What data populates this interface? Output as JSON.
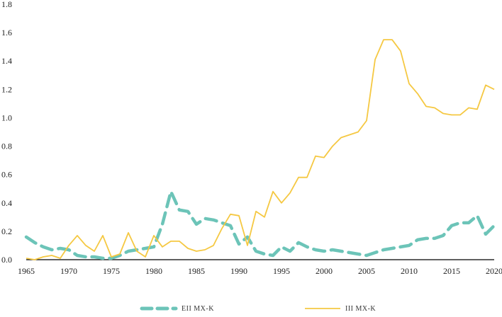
{
  "chart_data": {
    "type": "line",
    "x_ticks": [
      1965,
      1970,
      1975,
      1980,
      1985,
      1990,
      1995,
      2000,
      2005,
      2010,
      2015,
      2020
    ],
    "y_ticks": [
      "0.0",
      "0.2",
      "0.4",
      "0.6",
      "0.8",
      "1.0",
      "1.2",
      "1.4",
      "1.6",
      "1.8"
    ],
    "xlim": [
      1965,
      2020
    ],
    "ylim": [
      0,
      1.8
    ],
    "grid": false,
    "legend_position": "bottom",
    "series": [
      {
        "name": "EII MX-K",
        "color": "#6cc4b8",
        "style": "dashed",
        "x": [
          1965,
          1966,
          1967,
          1968,
          1969,
          1970,
          1971,
          1972,
          1973,
          1974,
          1975,
          1976,
          1977,
          1978,
          1979,
          1980,
          1981,
          1982,
          1983,
          1984,
          1985,
          1986,
          1987,
          1988,
          1989,
          1990,
          1991,
          1992,
          1993,
          1994,
          1995,
          1996,
          1997,
          1998,
          1999,
          2000,
          2001,
          2002,
          2003,
          2004,
          2005,
          2006,
          2007,
          2008,
          2009,
          2010,
          2011,
          2012,
          2013,
          2014,
          2015,
          2016,
          2017,
          2018,
          2019,
          2020
        ],
        "values": [
          0.16,
          0.12,
          0.09,
          0.07,
          0.08,
          0.07,
          0.03,
          0.02,
          0.02,
          0.01,
          0.01,
          0.03,
          0.06,
          0.07,
          0.08,
          0.09,
          0.25,
          0.48,
          0.35,
          0.34,
          0.25,
          0.29,
          0.28,
          0.26,
          0.24,
          0.11,
          0.16,
          0.06,
          0.04,
          0.03,
          0.09,
          0.06,
          0.12,
          0.09,
          0.07,
          0.06,
          0.07,
          0.06,
          0.05,
          0.04,
          0.03,
          0.05,
          0.07,
          0.08,
          0.09,
          0.1,
          0.14,
          0.15,
          0.15,
          0.17,
          0.24,
          0.26,
          0.26,
          0.31,
          0.18,
          0.24
        ]
      },
      {
        "name": "III MX-K",
        "color": "#f5c842",
        "style": "solid",
        "x": [
          1965,
          1966,
          1967,
          1968,
          1969,
          1970,
          1971,
          1972,
          1973,
          1974,
          1975,
          1976,
          1977,
          1978,
          1979,
          1980,
          1981,
          1982,
          1983,
          1984,
          1985,
          1986,
          1987,
          1988,
          1989,
          1990,
          1991,
          1992,
          1993,
          1994,
          1995,
          1996,
          1997,
          1998,
          1999,
          2000,
          2001,
          2002,
          2003,
          2004,
          2005,
          2006,
          2007,
          2008,
          2009,
          2010,
          2011,
          2012,
          2013,
          2014,
          2015,
          2016,
          2017,
          2018,
          2019,
          2020
        ],
        "values": [
          0.01,
          0.0,
          0.02,
          0.03,
          0.01,
          0.1,
          0.17,
          0.1,
          0.06,
          0.17,
          0.02,
          0.04,
          0.19,
          0.06,
          0.02,
          0.17,
          0.09,
          0.13,
          0.13,
          0.08,
          0.06,
          0.07,
          0.1,
          0.22,
          0.32,
          0.31,
          0.1,
          0.34,
          0.3,
          0.48,
          0.4,
          0.47,
          0.58,
          0.58,
          0.73,
          0.72,
          0.8,
          0.86,
          0.88,
          0.9,
          0.98,
          1.41,
          1.55,
          1.55,
          1.47,
          1.24,
          1.17,
          1.08,
          1.07,
          1.03,
          1.02,
          1.02,
          1.07,
          1.06,
          1.23,
          1.2
        ]
      }
    ]
  }
}
